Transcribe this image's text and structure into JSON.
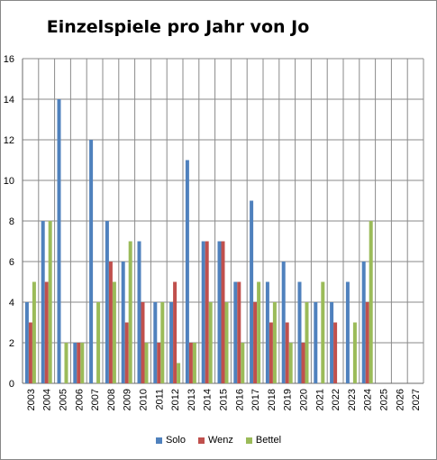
{
  "chart_data": {
    "type": "bar",
    "title": "Einzelspiele pro Jahr von Jo",
    "xlabel": "",
    "ylabel": "",
    "ylim": [
      0,
      16
    ],
    "yticks": [
      0,
      2,
      4,
      6,
      8,
      10,
      12,
      14,
      16
    ],
    "grid": true,
    "legend_position": "bottom",
    "categories": [
      "2003",
      "2004",
      "2005",
      "2006",
      "2007",
      "2008",
      "2009",
      "2010",
      "2011",
      "2012",
      "2013",
      "2014",
      "2015",
      "2016",
      "2017",
      "2018",
      "2019",
      "2020",
      "2021",
      "2022",
      "2023",
      "2024",
      "2025",
      "2026",
      "2027"
    ],
    "series": [
      {
        "name": "Solo",
        "color": "#4f81bd",
        "values": [
          4,
          8,
          14,
          2,
          12,
          8,
          6,
          7,
          4,
          4,
          11,
          7,
          7,
          5,
          9,
          5,
          6,
          5,
          4,
          4,
          5,
          6,
          0,
          0,
          0
        ]
      },
      {
        "name": "Wenz",
        "color": "#c0504d",
        "values": [
          3,
          5,
          0,
          2,
          0,
          6,
          3,
          4,
          2,
          5,
          2,
          7,
          7,
          5,
          4,
          3,
          3,
          2,
          0,
          3,
          0,
          4,
          0,
          0,
          0
        ]
      },
      {
        "name": "Bettel",
        "color": "#9bbb59",
        "values": [
          5,
          8,
          2,
          2,
          4,
          5,
          7,
          2,
          4,
          1,
          2,
          4,
          4,
          2,
          5,
          4,
          2,
          4,
          5,
          0,
          3,
          8,
          0,
          0,
          0
        ]
      }
    ]
  }
}
